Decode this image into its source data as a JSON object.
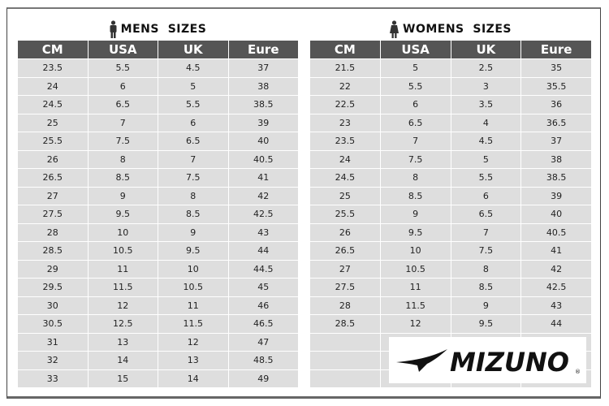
{
  "mens": {
    "title": "MENS  SIZES",
    "icon": "man-icon",
    "headers": [
      "CM",
      "USA",
      "UK",
      "Eure"
    ],
    "rows": [
      [
        "23.5",
        "5.5",
        "4.5",
        "37"
      ],
      [
        "24",
        "6",
        "5",
        "38"
      ],
      [
        "24.5",
        "6.5",
        "5.5",
        "38.5"
      ],
      [
        "25",
        "7",
        "6",
        "39"
      ],
      [
        "25.5",
        "7.5",
        "6.5",
        "40"
      ],
      [
        "26",
        "8",
        "7",
        "40.5"
      ],
      [
        "26.5",
        "8.5",
        "7.5",
        "41"
      ],
      [
        "27",
        "9",
        "8",
        "42"
      ],
      [
        "27.5",
        "9.5",
        "8.5",
        "42.5"
      ],
      [
        "28",
        "10",
        "9",
        "43"
      ],
      [
        "28.5",
        "10.5",
        "9.5",
        "44"
      ],
      [
        "29",
        "11",
        "10",
        "44.5"
      ],
      [
        "29.5",
        "11.5",
        "10.5",
        "45"
      ],
      [
        "30",
        "12",
        "11",
        "46"
      ],
      [
        "30.5",
        "12.5",
        "11.5",
        "46.5"
      ],
      [
        "31",
        "13",
        "12",
        "47"
      ],
      [
        "32",
        "14",
        "13",
        "48.5"
      ],
      [
        "33",
        "15",
        "14",
        "49"
      ]
    ]
  },
  "womens": {
    "title": "WOMENS  SIZES",
    "icon": "woman-icon",
    "headers": [
      "CM",
      "USA",
      "UK",
      "Eure"
    ],
    "rows": [
      [
        "21.5",
        "5",
        "2.5",
        "35"
      ],
      [
        "22",
        "5.5",
        "3",
        "35.5"
      ],
      [
        "22.5",
        "6",
        "3.5",
        "36"
      ],
      [
        "23",
        "6.5",
        "4",
        "36.5"
      ],
      [
        "23.5",
        "7",
        "4.5",
        "37"
      ],
      [
        "24",
        "7.5",
        "5",
        "38"
      ],
      [
        "24.5",
        "8",
        "5.5",
        "38.5"
      ],
      [
        "25",
        "8.5",
        "6",
        "39"
      ],
      [
        "25.5",
        "9",
        "6.5",
        "40"
      ],
      [
        "26",
        "9.5",
        "7",
        "40.5"
      ],
      [
        "26.5",
        "10",
        "7.5",
        "41"
      ],
      [
        "27",
        "10.5",
        "8",
        "42"
      ],
      [
        "27.5",
        "11",
        "8.5",
        "42.5"
      ],
      [
        "28",
        "11.5",
        "9",
        "43"
      ],
      [
        "28.5",
        "12",
        "9.5",
        "44"
      ]
    ]
  },
  "logo": {
    "text": "MIZUNO",
    "icon": "mizuno-runbird-logo"
  }
}
